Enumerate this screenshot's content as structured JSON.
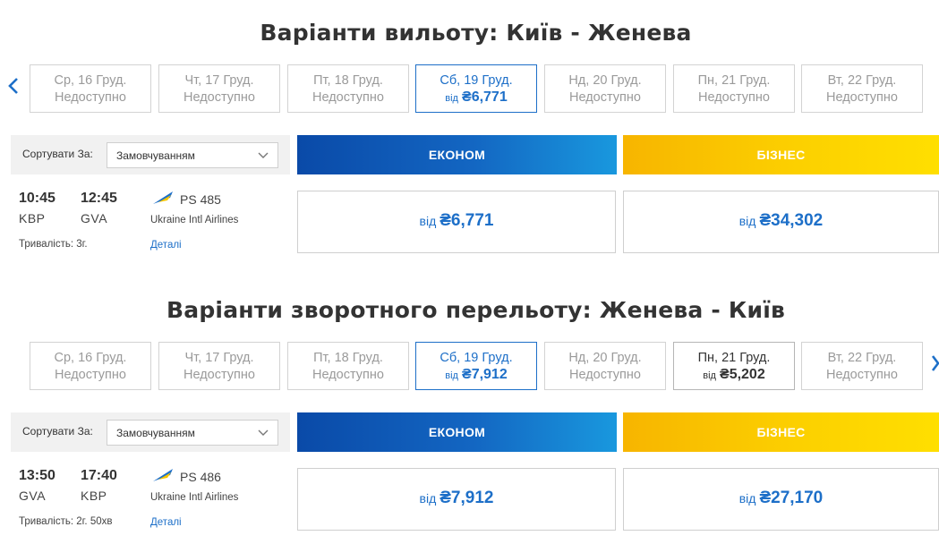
{
  "outbound": {
    "title": "Варіанти вильоту: Київ - Женева",
    "dates": [
      {
        "day": "Ср, 16 Груд.",
        "status": "Недоступно"
      },
      {
        "day": "Чт, 17 Груд.",
        "status": "Недоступно"
      },
      {
        "day": "Пт, 18 Груд.",
        "status": "Недоступно"
      },
      {
        "day": "Сб, 19 Груд.",
        "from": "від",
        "price": "₴6,771"
      },
      {
        "day": "Нд, 20 Груд.",
        "status": "Недоступно"
      },
      {
        "day": "Пн, 21 Груд.",
        "status": "Недоступно"
      },
      {
        "day": "Вт, 22 Груд.",
        "status": "Недоступно"
      }
    ],
    "sort_label": "Сортувати За:",
    "sort_value": "Замовчуванням",
    "economy_label": "ЕКОНОМ",
    "business_label": "БІЗНЕС",
    "flight": {
      "dep_time": "10:45",
      "arr_time": "12:45",
      "dep_code": "KBP",
      "arr_code": "GVA",
      "flight_number": "PS 485",
      "airline": "Ukraine Intl Airlines",
      "duration": "Тривалість: 3г.",
      "details": "Деталі",
      "economy_from": "від",
      "economy_price": "₴6,771",
      "business_from": "від",
      "business_price": "₴34,302"
    }
  },
  "return": {
    "title": "Варіанти зворотного перельоту: Женева - Київ",
    "dates": [
      {
        "day": "Ср, 16 Груд.",
        "status": "Недоступно"
      },
      {
        "day": "Чт, 17 Груд.",
        "status": "Недоступно"
      },
      {
        "day": "Пт, 18 Груд.",
        "status": "Недоступно"
      },
      {
        "day": "Сб, 19 Груд.",
        "from": "від",
        "price": "₴7,912"
      },
      {
        "day": "Нд, 20 Груд.",
        "status": "Недоступно"
      },
      {
        "day": "Пн, 21 Груд.",
        "from": "від",
        "price": "₴5,202"
      },
      {
        "day": "Вт, 22 Груд.",
        "status": "Недоступно"
      }
    ],
    "sort_label": "Сортувати За:",
    "sort_value": "Замовчуванням",
    "economy_label": "ЕКОНОМ",
    "business_label": "БІЗНЕС",
    "flight": {
      "dep_time": "13:50",
      "arr_time": "17:40",
      "dep_code": "GVA",
      "arr_code": "KBP",
      "flight_number": "PS 486",
      "airline": "Ukraine Intl Airlines",
      "duration": "Тривалість: 2г. 50хв",
      "details": "Деталі",
      "economy_from": "від",
      "economy_price": "₴7,912",
      "business_from": "від",
      "business_price": "₴27,170"
    }
  },
  "colors": {
    "accent": "#1d6fc8",
    "economy": "#0a4aa8",
    "business": "#fcd000"
  },
  "icons": {
    "prev": "chevron-left-icon",
    "next": "chevron-right-icon",
    "dropdown": "chevron-down-icon",
    "airline": "airline-logo-icon"
  }
}
